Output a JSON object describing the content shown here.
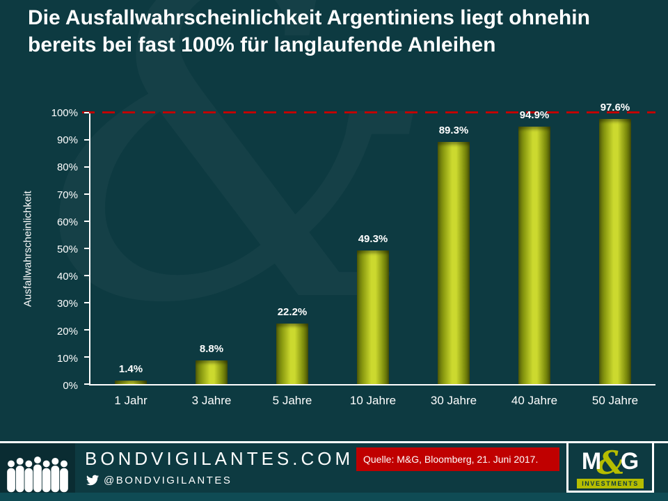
{
  "title": "Die Ausfallwahrscheinlichkeit Argentiniens liegt ohnehin bereits bei fast 100% für langlaufende Anleihen",
  "decor": {
    "watermark_glyph": "&"
  },
  "chart_data": {
    "type": "bar",
    "categories": [
      "1 Jahr",
      "3 Jahre",
      "5 Jahre",
      "10 Jahre",
      "30 Jahre",
      "40 Jahre",
      "50 Jahre"
    ],
    "values": [
      1.4,
      8.8,
      22.2,
      49.3,
      89.3,
      94.9,
      97.6
    ],
    "value_labels": [
      "1.4%",
      "8.8%",
      "22.2%",
      "49.3%",
      "89.3%",
      "94.9%",
      "97.6%"
    ],
    "ylabel": "Ausfallwahrscheinlichkeit",
    "xlabel": "",
    "ylim": [
      0,
      100
    ],
    "ytick_labels": [
      "0%",
      "10%",
      "20%",
      "30%",
      "40%",
      "50%",
      "60%",
      "70%",
      "80%",
      "90%",
      "100%"
    ],
    "grid": false,
    "reference_line": {
      "value": 100,
      "style": "dashed",
      "color": "#c00000"
    },
    "bar_color": "#b5bd00"
  },
  "footer": {
    "brand": "BONDVIGILANTES.COM",
    "twitter_handle": "@BONDVIGILANTES",
    "source": "Quelle: M&G, Bloomberg, 21. Juni 2017.",
    "logo": {
      "text_m": "M",
      "text_amp": "&",
      "text_g": "G",
      "tagline": "INVESTMENTS"
    }
  },
  "colors": {
    "background": "#0d3a41",
    "bar": "#b5bd00",
    "reference_red": "#c00000",
    "source_box_red": "#c00000",
    "logo_lime": "#b5bd00",
    "text": "#ffffff"
  }
}
